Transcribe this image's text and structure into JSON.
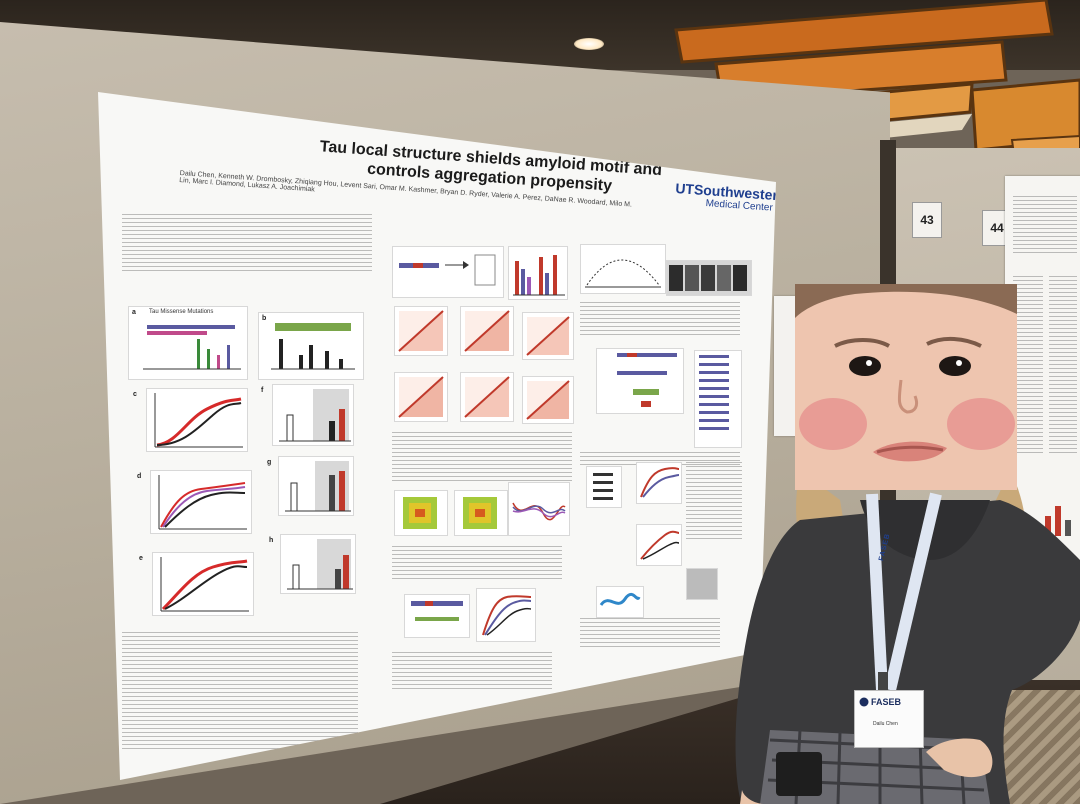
{
  "poster": {
    "title": "Tau local structure shields amyloid motif and controls aggregation propensity",
    "authors": "Dailu Chen, Kenneth W. Drombosky, Zhiqiang Hou, Levent Sari, Omar M. Kashmer, Bryan D. Ryder, Valerie A. Perez, DaNae R. Woodard, Milo M. Lin, Marc I. Diamond, Lukasz A. Joachimiak",
    "institution_logo": "UTSouthwestern",
    "institution_sub": "Medical Center",
    "figure_labels": [
      "a",
      "b",
      "c",
      "d",
      "e",
      "f",
      "g",
      "h"
    ],
    "chart_heading": "Tau Missense Mutations"
  },
  "booth": {
    "number_left": "43",
    "number_right": "44"
  },
  "badge": {
    "org": "FASEB",
    "name": "Dailu Chen"
  },
  "lanyard": {
    "text": "FASEB"
  },
  "colors": {
    "poster_title": "#1b1b1b",
    "logo_blue": "#1f3f8f",
    "board": "#bdb4a4",
    "cardigan": "#3a3a3c"
  }
}
